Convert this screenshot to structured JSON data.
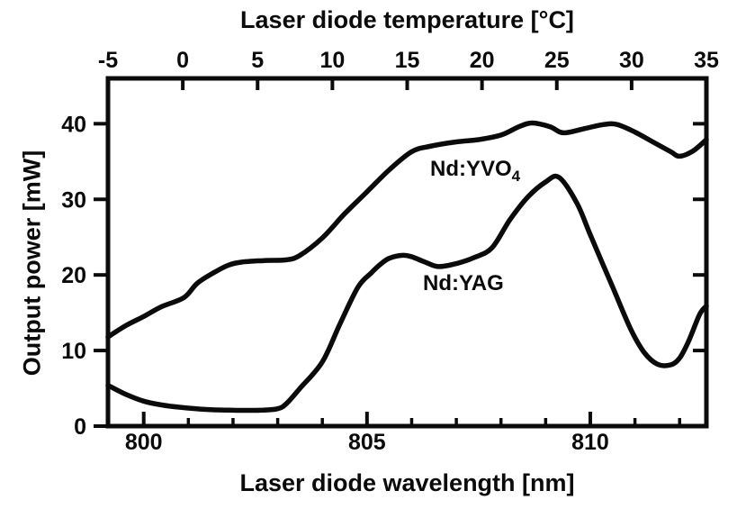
{
  "chart_data": {
    "type": "line",
    "title": "",
    "top_axis": {
      "label": "Laser diode temperature [°C]",
      "ticks": [
        -5,
        0,
        5,
        10,
        15,
        20,
        25,
        30,
        35
      ],
      "range": [
        -5,
        35
      ]
    },
    "bottom_axis": {
      "label": "Laser diode wavelength [nm]",
      "major_ticks": [
        800,
        805,
        810
      ],
      "minor_ticks": [
        801,
        802,
        803,
        804,
        806,
        807,
        808,
        809,
        811,
        812
      ],
      "range": [
        799.2,
        812.6
      ]
    },
    "left_axis": {
      "label": "Output power [mW]",
      "ticks": [
        0,
        10,
        20,
        30,
        40
      ],
      "right_side_ticks": [
        10,
        20,
        30,
        40
      ],
      "range": [
        0,
        46
      ]
    },
    "grid": "off",
    "legend": "inline-annotations",
    "series": [
      {
        "name": "Nd:YVO4",
        "label_main": "Nd:YVO",
        "label_sub": "4",
        "x_unit": "nm",
        "y_unit": "mW",
        "points": [
          [
            799.2,
            11.8
          ],
          [
            799.6,
            13.3
          ],
          [
            800.0,
            14.5
          ],
          [
            800.4,
            15.8
          ],
          [
            800.9,
            17.0
          ],
          [
            801.2,
            18.9
          ],
          [
            801.6,
            20.4
          ],
          [
            801.9,
            21.3
          ],
          [
            802.2,
            21.7
          ],
          [
            802.7,
            21.9
          ],
          [
            803.2,
            22.0
          ],
          [
            803.5,
            22.6
          ],
          [
            804.0,
            24.9
          ],
          [
            804.5,
            28.1
          ],
          [
            805.0,
            31.0
          ],
          [
            805.5,
            33.9
          ],
          [
            806.0,
            36.3
          ],
          [
            806.4,
            37.0
          ],
          [
            807.0,
            37.6
          ],
          [
            807.5,
            37.9
          ],
          [
            808.0,
            38.5
          ],
          [
            808.4,
            39.6
          ],
          [
            808.7,
            40.1
          ],
          [
            809.1,
            39.6
          ],
          [
            809.4,
            38.8
          ],
          [
            809.9,
            39.4
          ],
          [
            810.3,
            39.9
          ],
          [
            810.6,
            39.9
          ],
          [
            811.0,
            38.9
          ],
          [
            811.4,
            37.6
          ],
          [
            811.8,
            36.3
          ],
          [
            812.0,
            35.7
          ],
          [
            812.3,
            36.4
          ],
          [
            812.6,
            37.9
          ]
        ]
      },
      {
        "name": "Nd:YAG",
        "label_main": "Nd:YAG",
        "label_sub": "",
        "x_unit": "nm",
        "y_unit": "mW",
        "points": [
          [
            799.2,
            5.4
          ],
          [
            799.6,
            4.2
          ],
          [
            800.0,
            3.3
          ],
          [
            800.4,
            2.8
          ],
          [
            800.8,
            2.5
          ],
          [
            801.4,
            2.2
          ],
          [
            802.0,
            2.1
          ],
          [
            802.6,
            2.1
          ],
          [
            803.0,
            2.3
          ],
          [
            803.2,
            3.0
          ],
          [
            803.5,
            5.0
          ],
          [
            804.0,
            8.5
          ],
          [
            804.4,
            13.6
          ],
          [
            804.8,
            18.4
          ],
          [
            805.1,
            20.3
          ],
          [
            805.3,
            21.4
          ],
          [
            805.5,
            22.2
          ],
          [
            805.8,
            22.6
          ],
          [
            806.0,
            22.4
          ],
          [
            806.3,
            21.7
          ],
          [
            806.6,
            21.1
          ],
          [
            807.0,
            21.5
          ],
          [
            807.4,
            22.3
          ],
          [
            807.8,
            23.6
          ],
          [
            808.2,
            27.3
          ],
          [
            808.6,
            30.3
          ],
          [
            809.0,
            32.3
          ],
          [
            809.3,
            32.9
          ],
          [
            809.7,
            29.5
          ],
          [
            810.0,
            25.3
          ],
          [
            810.5,
            18.4
          ],
          [
            810.9,
            12.9
          ],
          [
            811.2,
            9.8
          ],
          [
            811.5,
            8.2
          ],
          [
            811.8,
            8.1
          ],
          [
            812.0,
            9.0
          ],
          [
            812.2,
            11.2
          ],
          [
            812.45,
            14.8
          ],
          [
            812.6,
            15.9
          ]
        ]
      }
    ],
    "ink_color": "#0b0b0b",
    "background": "#ffffff"
  }
}
